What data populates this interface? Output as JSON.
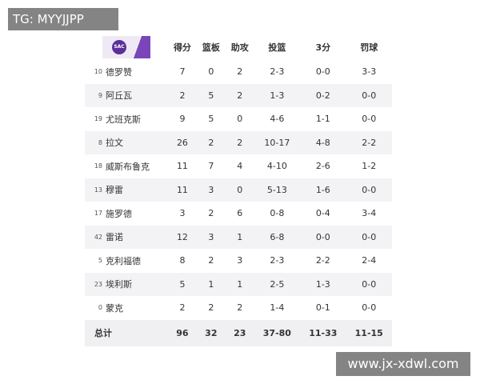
{
  "watermark": {
    "top": "TG: MYYJJPP",
    "bottom": "www.jx-xdwl.com"
  },
  "header": {
    "logo": "SAC"
  },
  "table": {
    "columns": [
      "得分",
      "篮板",
      "助攻",
      "投篮",
      "3分",
      "罚球"
    ],
    "rows": [
      [
        "10",
        "德罗赞",
        7,
        0,
        2,
        "2-3",
        "0-0",
        "3-3"
      ],
      [
        "9",
        "阿丘瓦",
        2,
        5,
        2,
        "1-3",
        "0-2",
        "0-0"
      ],
      [
        "19",
        "尤班克斯",
        9,
        5,
        0,
        "4-6",
        "1-1",
        "0-0"
      ],
      [
        "8",
        "拉文",
        26,
        2,
        2,
        "10-17",
        "4-8",
        "2-2"
      ],
      [
        "18",
        "威斯布鲁克",
        11,
        7,
        4,
        "4-10",
        "2-6",
        "1-2"
      ],
      [
        "13",
        "穆雷",
        11,
        3,
        0,
        "5-13",
        "1-6",
        "0-0"
      ],
      [
        "17",
        "施罗德",
        3,
        2,
        6,
        "0-8",
        "0-4",
        "3-4"
      ],
      [
        "42",
        "雷诺",
        12,
        3,
        1,
        "6-8",
        "0-0",
        "0-0"
      ],
      [
        "5",
        "克利福德",
        8,
        2,
        3,
        "2-3",
        "2-2",
        "2-4"
      ],
      [
        "23",
        "埃利斯",
        5,
        1,
        1,
        "2-5",
        "1-3",
        "0-0"
      ],
      [
        "0",
        "蒙克",
        2,
        2,
        2,
        "1-4",
        "0-1",
        "0-0"
      ]
    ],
    "total": [
      "总计",
      96,
      32,
      23,
      "37-80",
      "11-33",
      "11-15"
    ]
  }
}
